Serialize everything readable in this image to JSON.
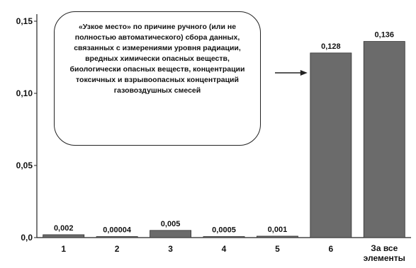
{
  "chart_data": {
    "type": "bar",
    "categories": [
      "1",
      "2",
      "3",
      "4",
      "5",
      "6",
      "За все элементы"
    ],
    "values": [
      0.002,
      4e-05,
      0.005,
      0.0005,
      0.001,
      0.128,
      0.136
    ],
    "value_labels": [
      "0,002",
      "0,00004",
      "0,005",
      "0,0005",
      "0,001",
      "0,128",
      "0,136"
    ],
    "ylim": [
      0,
      0.15
    ],
    "yticks": [
      0.0,
      0.05,
      0.1,
      0.15
    ],
    "ytick_labels": [
      "0,0",
      "0,05",
      "0,10",
      "0,15"
    ],
    "grid": false,
    "bar_color": "#6b6b6b",
    "annotation": {
      "text": "«Узкое место» по причине ручного (или не полностью автоматического) сбора данных, связанных с измерениями уровня радиации, вредных химически опасных веществ, биологически опасных веществ, концентрации токсичных и взрывоопасных концентраций газовоздушных смесей",
      "points_to": "6"
    }
  }
}
